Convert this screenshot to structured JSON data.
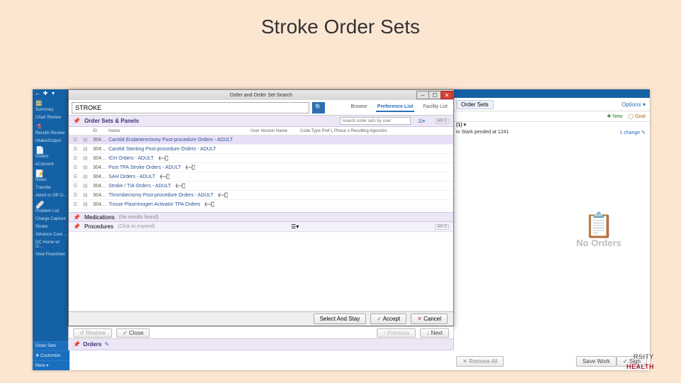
{
  "slide": {
    "title": "Stroke Order Sets"
  },
  "leftRail": {
    "topGlyphs": [
      "←",
      "✚",
      "▾"
    ],
    "items": [
      {
        "label": "Summary",
        "icon": "ic"
      },
      {
        "label": "Chart Review",
        "icon": ""
      },
      {
        "label": "Results Review",
        "icon": "flask"
      },
      {
        "label": "Intake/Output",
        "icon": ""
      },
      {
        "label": "Orders",
        "icon": "doc"
      },
      {
        "label": "eConsent",
        "icon": ""
      },
      {
        "label": "Notes",
        "icon": "note"
      },
      {
        "label": "Transfer",
        "icon": ""
      },
      {
        "label": "Admit or OP O…",
        "icon": ""
      },
      {
        "label": "Problem List",
        "icon": "band"
      },
      {
        "label": "Charge Capture",
        "icon": ""
      },
      {
        "label": "Stroke",
        "icon": ""
      },
      {
        "label": "Advance Care …",
        "icon": ""
      },
      {
        "label": "DC Home w/ O…",
        "icon": ""
      },
      {
        "label": "View Flowsheet",
        "icon": ""
      }
    ],
    "bottom": [
      "Order Sets",
      "❖ Customize",
      "More ▾"
    ]
  },
  "bgRight": {
    "tab": "Order Sets",
    "options": "Options ▾",
    "newBtn": "New",
    "goalBtn": "Goal",
    "countLine": "(1) ▾",
    "pendedLine": "in Stark pended at 1241",
    "changeLink": "1 change ✎",
    "noOrders": "No Orders",
    "removeAll": "Remove All",
    "saveWork": "Save Work",
    "sign": "Sign",
    "brandTop": "RSITY",
    "brandBot": "HEALTH"
  },
  "dialog": {
    "title": "Order and Order Set Search",
    "searchValue": "STROKE",
    "tabs": {
      "browse": "Browse",
      "preference": "Preference List",
      "facility": "Facility List"
    },
    "orderSets": {
      "title": "Order Sets & Panels",
      "pin": "📌",
      "userSearchPlaceholder": "Search order sets by user",
      "filterGlyph": "☰▾",
      "kbHint": "Alt+1",
      "columns": {
        "id": "ID",
        "name": "Name",
        "uvn": "User Version Name",
        "rest": "Code Type Pref L Phase o Resulting Agencies"
      },
      "rows": [
        {
          "id": "304…",
          "name": "Carotid Endarterectomy Post-procedure Orders - ADULT",
          "arrow": false,
          "selected": true
        },
        {
          "id": "304…",
          "name": "Carotid Stenting Post-procedure Orders - ADULT",
          "arrow": false
        },
        {
          "id": "304…",
          "name": "ICH Orders - ADULT",
          "arrow": true
        },
        {
          "id": "304…",
          "name": "Post TPA Stroke Orders - ADULT",
          "arrow": true
        },
        {
          "id": "304…",
          "name": "SAH Orders - ADULT",
          "arrow": true
        },
        {
          "id": "304…",
          "name": "Stroke / TIA Orders - ADULT",
          "arrow": true
        },
        {
          "id": "304…",
          "name": "Thrombectomy Post-procedure Orders - ADULT",
          "arrow": true
        },
        {
          "id": "304…",
          "name": "Tissue Plasminogen Activator TPA Orders",
          "arrow": true
        }
      ]
    },
    "medications": {
      "title": "Medications",
      "note": "(No results found)",
      "pin": "📌"
    },
    "procedures": {
      "title": "Procedures",
      "note": "(Click to expand)",
      "pin": "📌",
      "kbHint": "Alt+3"
    },
    "footer": {
      "selectStay": "Select And Stay",
      "accept": "Accept",
      "cancel": "Cancel"
    }
  },
  "lower": {
    "restore": "↺ Restore",
    "close": "Close",
    "previous": "↑ Previous",
    "next": "Next",
    "ordersTitle": "Orders",
    "ordersGlyph": "✎"
  },
  "style": {
    "slideBg": "#fbe6d2",
    "epicBlue": "#1561a5",
    "panelPurple": "#ece6f6",
    "linkBlue": "#2a5494",
    "closeRed": "#d04333"
  }
}
